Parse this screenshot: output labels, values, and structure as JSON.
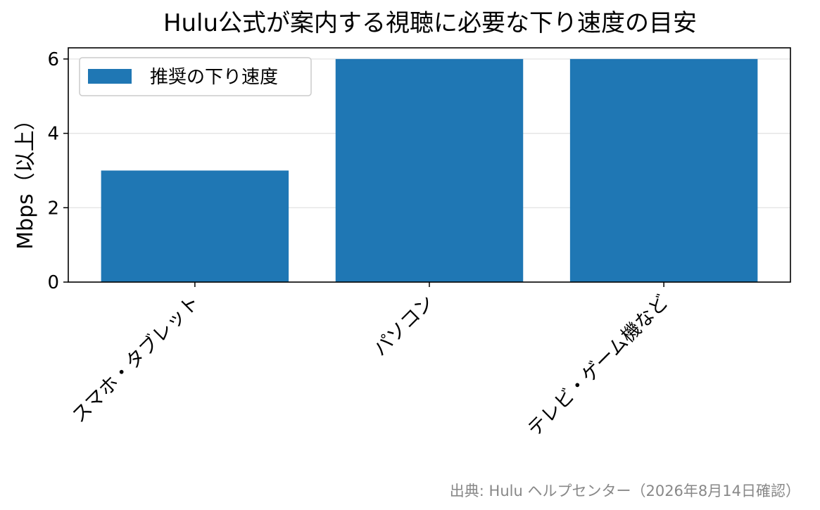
{
  "chart_data": {
    "type": "bar",
    "title": "Hulu公式が案内する視聴に必要な下り速度の目安",
    "xlabel": "",
    "ylabel": "Mbps（以上）",
    "categories": [
      "スマホ・タブレット",
      "パソコン",
      "テレビ・ゲーム機など"
    ],
    "series": [
      {
        "name": "推奨の下り速度",
        "values": [
          3,
          6,
          6
        ]
      }
    ],
    "ylim": [
      0,
      6.3
    ],
    "yticks": [
      0,
      2,
      4,
      6
    ],
    "grid": "y",
    "legend": "top-left",
    "bar_color": "#1f77b4",
    "source": "出典: Hulu ヘルプセンター（2026年8月14日確認）"
  }
}
